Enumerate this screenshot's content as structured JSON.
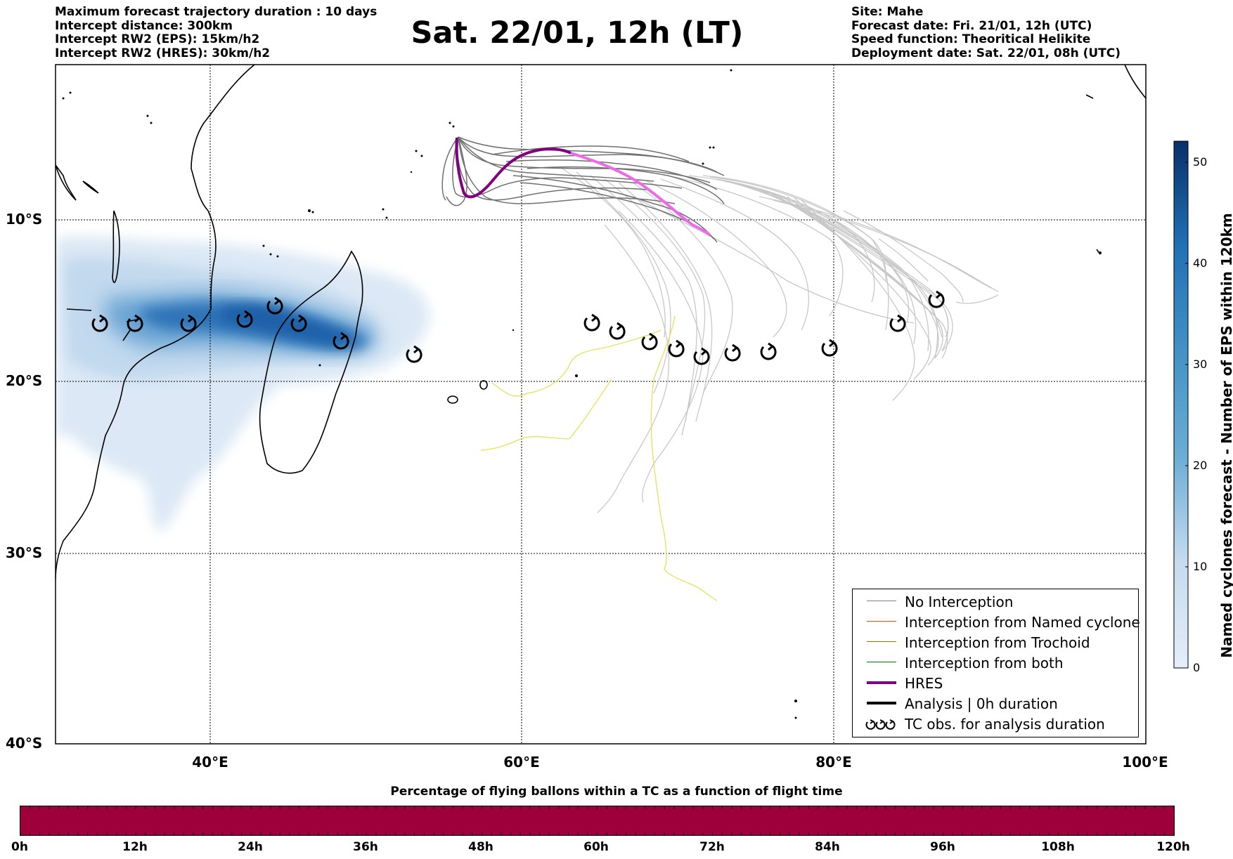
{
  "header_left": [
    "Maximum forecast trajectory duration : 10 days",
    "Intercept distance: 300km",
    "Intercept RW2 (EPS):  15km/h2",
    "Intercept RW2 (HRES): 30km/h2"
  ],
  "header_right": [
    "Site: Mahe",
    "Forecast date: Fri. 21/01, 12h (UTC)",
    "Speed function: Theoritical Helikite",
    "Deployment date: Sat. 22/01, 08h (UTC)"
  ],
  "title": "Sat. 22/01, 12h (LT)",
  "lat_labels": [
    "10°S",
    "20°S",
    "30°S",
    "40°S"
  ],
  "lon_labels": [
    "40°E",
    "60°E",
    "80°E",
    "100°E"
  ],
  "colorbar": {
    "label": "Named cyclones forecast - Number of EPS within 120km",
    "ticks": [
      "0",
      "10",
      "20",
      "30",
      "40",
      "50"
    ],
    "color_low": "#e3eef9",
    "color_high": "#08306b"
  },
  "legend": [
    {
      "label": "No Interception",
      "color": "#808080"
    },
    {
      "label": "Interception from Named cyclone",
      "color": "#ff4500"
    },
    {
      "label": "Interception from Trochoid",
      "color": "#808000"
    },
    {
      "label": "Interception from both",
      "color": "#008000"
    },
    {
      "label": "HRES",
      "color": "#800080"
    },
    {
      "label": "Analysis | 0h duration",
      "color": "#000000"
    },
    {
      "label": "TC obs. for analysis duration",
      "color": "#000000",
      "icon": "cyclone-icon"
    }
  ],
  "bottom_bar": {
    "title": "Percentage of flying ballons within a TC as a function of flight time",
    "color": "#9e003b",
    "ticks": [
      "0h",
      "12h",
      "24h",
      "36h",
      "48h",
      "60h",
      "72h",
      "84h",
      "96h",
      "108h",
      "120h"
    ]
  }
}
